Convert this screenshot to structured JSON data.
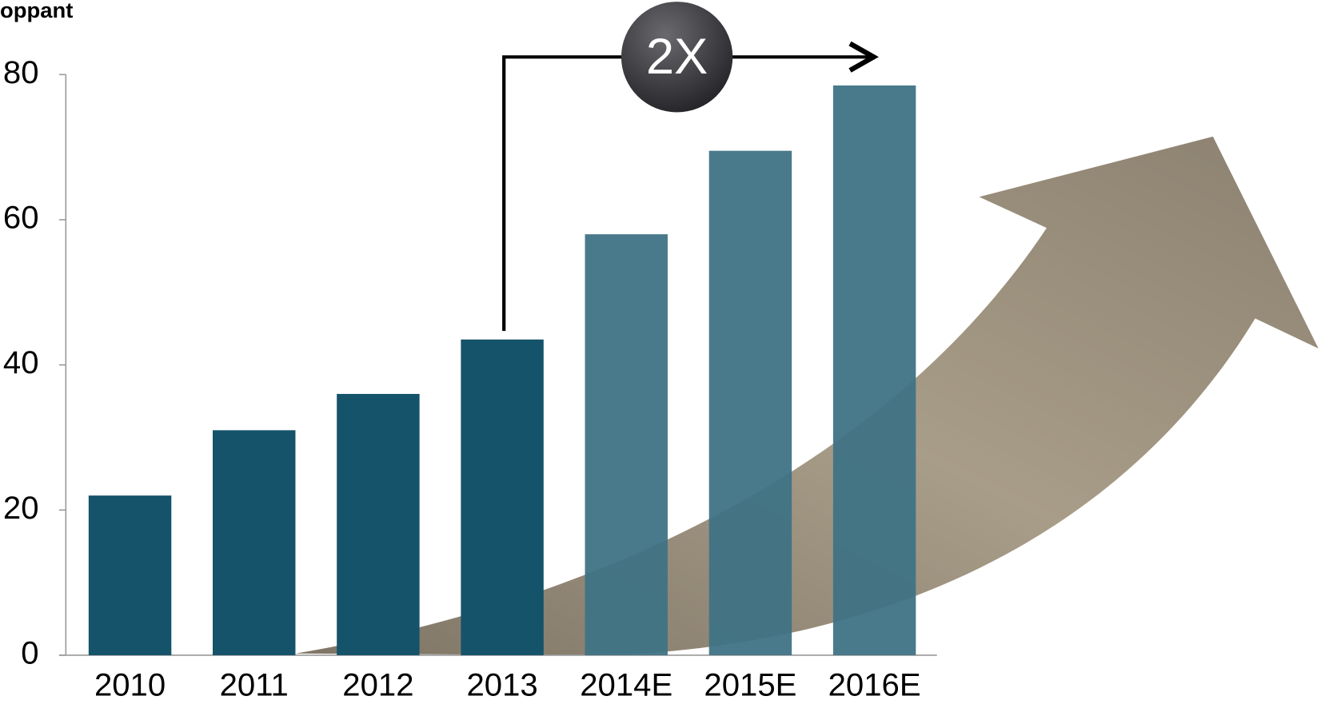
{
  "chart_data": {
    "type": "bar",
    "title": "oppant",
    "categories": [
      "2010",
      "2011",
      "2012",
      "2013",
      "2014E",
      "2015E",
      "2016E"
    ],
    "values": [
      22,
      31,
      36,
      43.5,
      58,
      69.5,
      78.5
    ],
    "colors": [
      "#15536a",
      "#15536a",
      "#15536a",
      "#15536a",
      "#3f7385",
      "#3f7385",
      "#3f7385"
    ],
    "ylim": [
      0,
      80
    ],
    "yticks": [
      0,
      20,
      40,
      60,
      80
    ],
    "grid": false,
    "annotation": "2X"
  }
}
